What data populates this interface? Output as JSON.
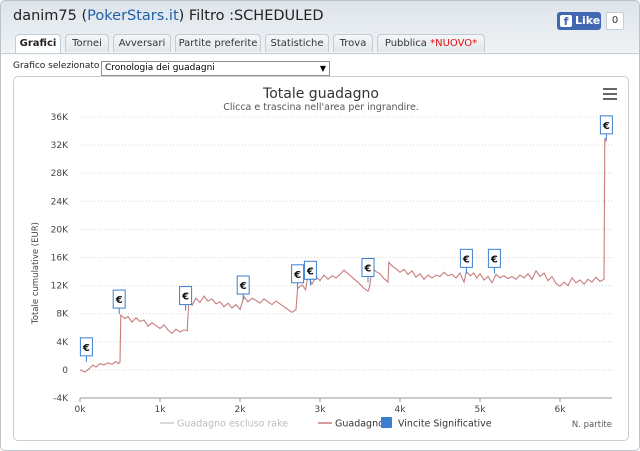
{
  "header": {
    "user": "danim75",
    "open_paren": " (",
    "site": "PokerStars.it",
    "filter_text": ") Filtro :SCHEDULED"
  },
  "facebook": {
    "like_label": "Like",
    "count": "0",
    "icon": "f"
  },
  "tabs": [
    {
      "label": "Grafici",
      "active": true
    },
    {
      "label": "Tornei"
    },
    {
      "label": "Avversari"
    },
    {
      "label": "Partite preferite"
    },
    {
      "label": "Statistiche"
    },
    {
      "label": "Trova"
    },
    {
      "label": "Pubblica ",
      "badge": "*NUOVO*"
    }
  ],
  "selector": {
    "label": "Grafico selezionato",
    "value": "Cronologia dei guadagni",
    "arrow": "▼"
  },
  "chart_data": {
    "type": "line",
    "title": "Totale guadagno",
    "subtitle": "Clicca e trascina nell'area per ingrandire.",
    "ylabel": "Totale cumulative (EUR)",
    "xlabel": "N. partite",
    "ylim": [
      -4000,
      36000
    ],
    "xlim": [
      0,
      6650
    ],
    "yticks": [
      "-4K",
      "0",
      "4K",
      "8K",
      "12K",
      "16K",
      "20K",
      "24K",
      "28K",
      "32K",
      "36K"
    ],
    "xticks": [
      "0k",
      "1k",
      "2k",
      "3k",
      "4k",
      "5k",
      "6k"
    ],
    "grid": true,
    "legend_position": "bottom",
    "legend": [
      {
        "name": "Guadagno escluso rake",
        "color": "#cccccc"
      },
      {
        "name": "Guadagno",
        "color": "#c87c7c"
      },
      {
        "name": "Vincite Significative",
        "color": "#3a7fcf"
      }
    ],
    "series": [
      {
        "name": "Guadagno",
        "color": "#c87c7c",
        "points": [
          [
            0,
            0
          ],
          [
            60,
            -300
          ],
          [
            120,
            200
          ],
          [
            160,
            700
          ],
          [
            200,
            400
          ],
          [
            250,
            900
          ],
          [
            300,
            700
          ],
          [
            350,
            1000
          ],
          [
            400,
            800
          ],
          [
            450,
            1200
          ],
          [
            480,
            900
          ],
          [
            500,
            1100
          ],
          [
            510,
            7800
          ],
          [
            560,
            7300
          ],
          [
            600,
            7600
          ],
          [
            650,
            6800
          ],
          [
            700,
            7400
          ],
          [
            750,
            6900
          ],
          [
            800,
            7100
          ],
          [
            850,
            6200
          ],
          [
            900,
            6700
          ],
          [
            950,
            6300
          ],
          [
            1000,
            5900
          ],
          [
            1050,
            6400
          ],
          [
            1100,
            5700
          ],
          [
            1150,
            5200
          ],
          [
            1200,
            5800
          ],
          [
            1250,
            5400
          ],
          [
            1300,
            5700
          ],
          [
            1340,
            5600
          ],
          [
            1360,
            9800
          ],
          [
            1400,
            9200
          ],
          [
            1450,
            10200
          ],
          [
            1500,
            9600
          ],
          [
            1550,
            10500
          ],
          [
            1600,
            9800
          ],
          [
            1650,
            10100
          ],
          [
            1700,
            9400
          ],
          [
            1750,
            9700
          ],
          [
            1800,
            9000
          ],
          [
            1850,
            9500
          ],
          [
            1900,
            8800
          ],
          [
            1950,
            9300
          ],
          [
            2000,
            8600
          ],
          [
            2050,
            10400
          ],
          [
            2100,
            9700
          ],
          [
            2150,
            10200
          ],
          [
            2200,
            9900
          ],
          [
            2250,
            9500
          ],
          [
            2300,
            10100
          ],
          [
            2350,
            9700
          ],
          [
            2400,
            9300
          ],
          [
            2450,
            9800
          ],
          [
            2500,
            9400
          ],
          [
            2550,
            9000
          ],
          [
            2600,
            8600
          ],
          [
            2650,
            8200
          ],
          [
            2700,
            8600
          ],
          [
            2720,
            11600
          ],
          [
            2780,
            12100
          ],
          [
            2820,
            11400
          ],
          [
            2850,
            13400
          ],
          [
            2900,
            12200
          ],
          [
            2950,
            13300
          ],
          [
            3000,
            12700
          ],
          [
            3050,
            13500
          ],
          [
            3100,
            12900
          ],
          [
            3150,
            13400
          ],
          [
            3200,
            13100
          ],
          [
            3250,
            13600
          ],
          [
            3300,
            14200
          ],
          [
            3350,
            13700
          ],
          [
            3400,
            13200
          ],
          [
            3450,
            12700
          ],
          [
            3500,
            12200
          ],
          [
            3550,
            11600
          ],
          [
            3600,
            11200
          ],
          [
            3620,
            11800
          ],
          [
            3650,
            14500
          ],
          [
            3700,
            14000
          ],
          [
            3750,
            13700
          ],
          [
            3800,
            13000
          ],
          [
            3850,
            12500
          ],
          [
            3860,
            15300
          ],
          [
            3900,
            14800
          ],
          [
            3950,
            14400
          ],
          [
            4000,
            13900
          ],
          [
            4050,
            14300
          ],
          [
            4100,
            13600
          ],
          [
            4150,
            14100
          ],
          [
            4200,
            13200
          ],
          [
            4250,
            13700
          ],
          [
            4300,
            12900
          ],
          [
            4350,
            13500
          ],
          [
            4400,
            13100
          ],
          [
            4450,
            13500
          ],
          [
            4500,
            13300
          ],
          [
            4550,
            13900
          ],
          [
            4600,
            13400
          ],
          [
            4650,
            13600
          ],
          [
            4700,
            13100
          ],
          [
            4750,
            13800
          ],
          [
            4800,
            12500
          ],
          [
            4830,
            14000
          ],
          [
            4880,
            13400
          ],
          [
            4920,
            13800
          ],
          [
            4960,
            13100
          ],
          [
            5000,
            13700
          ],
          [
            5050,
            12800
          ],
          [
            5100,
            13300
          ],
          [
            5150,
            12400
          ],
          [
            5200,
            13600
          ],
          [
            5250,
            13100
          ],
          [
            5300,
            13400
          ],
          [
            5350,
            13000
          ],
          [
            5400,
            13300
          ],
          [
            5450,
            12900
          ],
          [
            5500,
            13500
          ],
          [
            5550,
            13100
          ],
          [
            5600,
            13700
          ],
          [
            5650,
            12900
          ],
          [
            5700,
            14100
          ],
          [
            5750,
            13300
          ],
          [
            5800,
            13800
          ],
          [
            5850,
            12700
          ],
          [
            5900,
            13300
          ],
          [
            5950,
            12300
          ],
          [
            6000,
            11900
          ],
          [
            6050,
            12500
          ],
          [
            6100,
            12000
          ],
          [
            6150,
            13100
          ],
          [
            6200,
            12400
          ],
          [
            6250,
            12800
          ],
          [
            6300,
            12200
          ],
          [
            6350,
            12900
          ],
          [
            6400,
            12500
          ],
          [
            6450,
            13200
          ],
          [
            6500,
            12600
          ],
          [
            6550,
            12900
          ],
          [
            6560,
            33000
          ],
          [
            6580,
            32500
          ]
        ]
      }
    ],
    "markers": [
      {
        "x": 80,
        "y": 2000,
        "symbol": "€"
      },
      {
        "x": 490,
        "y": 8800,
        "symbol": "€"
      },
      {
        "x": 1320,
        "y": 9300,
        "symbol": "€"
      },
      {
        "x": 2040,
        "y": 10800,
        "symbol": "€"
      },
      {
        "x": 2720,
        "y": 12400,
        "symbol": "€"
      },
      {
        "x": 2880,
        "y": 12900,
        "symbol": "€"
      },
      {
        "x": 3600,
        "y": 13300,
        "symbol": "€"
      },
      {
        "x": 4830,
        "y": 14600,
        "symbol": "€"
      },
      {
        "x": 5180,
        "y": 14600,
        "symbol": "€"
      },
      {
        "x": 6580,
        "y": 33600,
        "symbol": "€"
      }
    ]
  }
}
